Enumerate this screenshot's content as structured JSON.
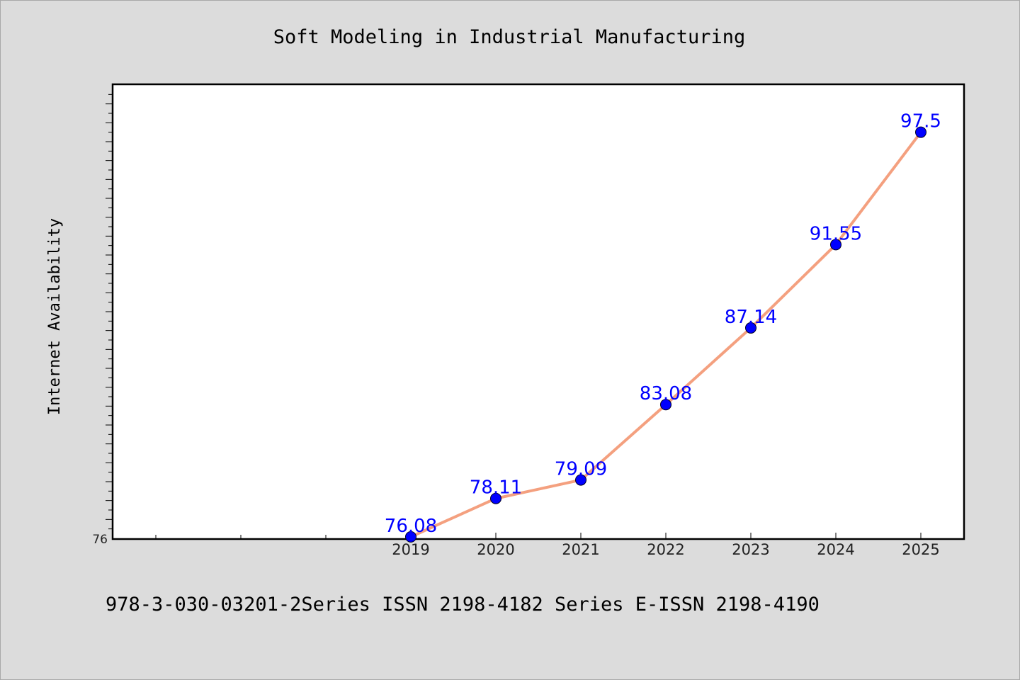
{
  "chart_data": {
    "type": "line",
    "title": "Soft Modeling in Industrial Manufacturing",
    "ylabel": "Internet Availability",
    "xlabel": "",
    "categories": [
      "2019",
      "2020",
      "2021",
      "2022",
      "2023",
      "2024",
      "2025"
    ],
    "series": [
      {
        "values": [
          76.08,
          78.11,
          79.09,
          83.08,
          87.14,
          91.55,
          97.5
        ],
        "labels": [
          "76.08",
          "78.11",
          "79.09",
          "83.08",
          "87.14",
          "91.55",
          "97.5"
        ],
        "line_color": "#f4a07f",
        "marker_color": "#0000ff"
      }
    ],
    "xlim": [
      2015.5,
      2025.5
    ],
    "ylim": [
      76,
      100
    ],
    "yticks_labeled": [
      "76"
    ],
    "grid": false,
    "legend": "none"
  },
  "footer": "978-3-030-03201-2Series ISSN 2198-4182 Series E-ISSN 2198-4190",
  "colors": {
    "background": "#dcdcdc",
    "plot_background": "#ffffff",
    "line": "#f4a07f",
    "marker": "#0000ff",
    "data_label": "#0000ff"
  }
}
